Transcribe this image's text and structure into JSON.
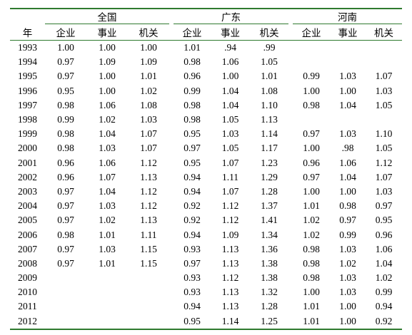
{
  "table": {
    "year_header": "年",
    "groups": [
      "全国",
      "广东",
      "河南"
    ],
    "subheaders": [
      "企业",
      "事业",
      "机关"
    ],
    "rows": [
      {
        "year": "1993",
        "values": [
          "1.00",
          "1.00",
          "1.00",
          "1.01",
          ".94",
          ".99",
          "",
          "",
          ""
        ]
      },
      {
        "year": "1994",
        "values": [
          "0.97",
          "1.09",
          "1.09",
          "0.98",
          "1.06",
          "1.05",
          "",
          "",
          ""
        ]
      },
      {
        "year": "1995",
        "values": [
          "0.97",
          "1.00",
          "1.01",
          "0.96",
          "1.00",
          "1.01",
          "0.99",
          "1.03",
          "1.07"
        ]
      },
      {
        "year": "1996",
        "values": [
          "0.95",
          "1.00",
          "1.02",
          "0.99",
          "1.04",
          "1.08",
          "1.00",
          "1.00",
          "1.03"
        ]
      },
      {
        "year": "1997",
        "values": [
          "0.98",
          "1.06",
          "1.08",
          "0.98",
          "1.04",
          "1.10",
          "0.98",
          "1.04",
          "1.05"
        ]
      },
      {
        "year": "1998",
        "values": [
          "0.99",
          "1.02",
          "1.03",
          "0.98",
          "1.05",
          "1.13",
          "",
          "",
          ""
        ]
      },
      {
        "year": "1999",
        "values": [
          "0.98",
          "1.04",
          "1.07",
          "0.95",
          "1.03",
          "1.14",
          "0.97",
          "1.03",
          "1.10"
        ]
      },
      {
        "year": "2000",
        "values": [
          "0.98",
          "1.03",
          "1.07",
          "0.97",
          "1.05",
          "1.17",
          "1.00",
          ".98",
          "1.05"
        ]
      },
      {
        "year": "2001",
        "values": [
          "0.96",
          "1.06",
          "1.12",
          "0.95",
          "1.07",
          "1.23",
          "0.96",
          "1.06",
          "1.12"
        ]
      },
      {
        "year": "2002",
        "values": [
          "0.96",
          "1.07",
          "1.13",
          "0.94",
          "1.11",
          "1.29",
          "0.97",
          "1.04",
          "1.07"
        ]
      },
      {
        "year": "2003",
        "values": [
          "0.97",
          "1.04",
          "1.12",
          "0.94",
          "1.07",
          "1.28",
          "1.00",
          "1.00",
          "1.03"
        ]
      },
      {
        "year": "2004",
        "values": [
          "0.97",
          "1.03",
          "1.12",
          "0.92",
          "1.12",
          "1.37",
          "1.01",
          "0.98",
          "0.97"
        ]
      },
      {
        "year": "2005",
        "values": [
          "0.97",
          "1.02",
          "1.13",
          "0.92",
          "1.12",
          "1.41",
          "1.02",
          "0.97",
          "0.95"
        ]
      },
      {
        "year": "2006",
        "values": [
          "0.98",
          "1.01",
          "1.11",
          "0.94",
          "1.09",
          "1.34",
          "1.02",
          "0.99",
          "0.96"
        ]
      },
      {
        "year": "2007",
        "values": [
          "0.97",
          "1.03",
          "1.15",
          "0.93",
          "1.13",
          "1.36",
          "0.98",
          "1.03",
          "1.06"
        ]
      },
      {
        "year": "2008",
        "values": [
          "0.97",
          "1.01",
          "1.15",
          "0.97",
          "1.13",
          "1.38",
          "0.98",
          "1.02",
          "1.04"
        ]
      },
      {
        "year": "2009",
        "values": [
          "",
          "",
          "",
          "0.93",
          "1.12",
          "1.38",
          "0.98",
          "1.03",
          "1.02"
        ]
      },
      {
        "year": "2010",
        "values": [
          "",
          "",
          "",
          "0.93",
          "1.13",
          "1.32",
          "1.00",
          "1.03",
          "0.99"
        ]
      },
      {
        "year": "2011",
        "values": [
          "",
          "",
          "",
          "0.94",
          "1.13",
          "1.28",
          "1.01",
          "1.00",
          "0.94"
        ]
      },
      {
        "year": "2012",
        "values": [
          "",
          "",
          "",
          "0.95",
          "1.14",
          "1.25",
          "1.01",
          "1.00",
          "0.92"
        ]
      }
    ]
  },
  "colors": {
    "rule": "#2f7a2f"
  }
}
